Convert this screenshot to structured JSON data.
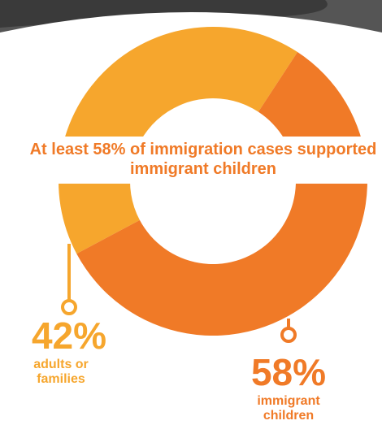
{
  "chart_data": {
    "type": "donut",
    "title": "At least 58% of immigration cases supported immigrant children",
    "categories": [
      "adults or families",
      "immigrant children"
    ],
    "values": [
      42,
      58
    ],
    "value_labels": [
      "42%",
      "58%"
    ],
    "colors": [
      "#f6a62d",
      "#f07a27"
    ]
  }
}
